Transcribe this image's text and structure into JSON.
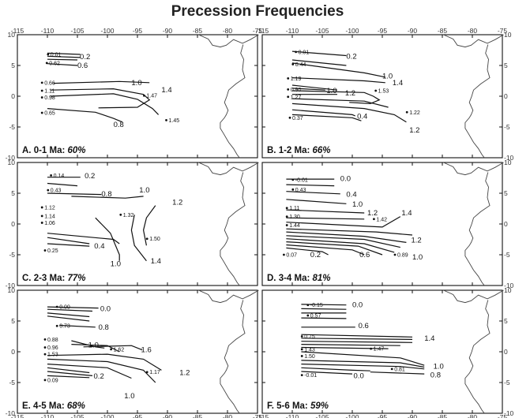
{
  "title": "Precession Frequencies",
  "x_ticks": [
    "-115",
    "-110",
    "-105",
    "-100",
    "-95",
    "-90",
    "-85",
    "-80",
    "-75"
  ],
  "y_ticks": [
    "10",
    "5",
    "0",
    "-5",
    "-10"
  ],
  "panels": [
    {
      "id": "A",
      "label": "A. 0-1 Ma:",
      "percent": "60%",
      "values": [
        {
          "v": "0.01",
          "x": -109.5,
          "y": 6.8
        },
        {
          "v": "0.62",
          "x": -109.7,
          "y": 5.4
        },
        {
          "v": "0.66",
          "x": -110.5,
          "y": 2.2
        },
        {
          "v": "1.11",
          "x": -110.5,
          "y": 0.9
        },
        {
          "v": "0.98",
          "x": -110.5,
          "y": -0.2
        },
        {
          "v": "0.65",
          "x": -110.5,
          "y": -2.7
        },
        {
          "v": "1.47",
          "x": -93.5,
          "y": 0.1
        },
        {
          "v": "1.45",
          "x": -89.8,
          "y": -3.9
        }
      ],
      "contours": [
        {
          "v": "0.2",
          "x": -104.6,
          "y": 6.4
        },
        {
          "v": "0.6",
          "x": -105.0,
          "y": 5.0
        },
        {
          "v": "1.0",
          "x": -96.0,
          "y": 2.2
        },
        {
          "v": "1.4",
          "x": -91.0,
          "y": 1.0
        },
        {
          "v": "0.8",
          "x": -99.0,
          "y": -4.6
        }
      ]
    },
    {
      "id": "B",
      "label": "B. 1-2 Ma:",
      "percent": "66%",
      "values": [
        {
          "v": "0.01",
          "x": -109.0,
          "y": 7.2
        },
        {
          "v": "0.44",
          "x": -109.5,
          "y": 5.2
        },
        {
          "v": "1.19",
          "x": -110.3,
          "y": 2.9
        },
        {
          "v": "0.90",
          "x": -110.3,
          "y": 1.1
        },
        {
          "v": "1.27",
          "x": -110.3,
          "y": -0.1
        },
        {
          "v": "0.37",
          "x": -110.0,
          "y": -3.5
        },
        {
          "v": "1.53",
          "x": -95.7,
          "y": 0.9
        },
        {
          "v": "1.22",
          "x": -90.5,
          "y": -2.6
        }
      ],
      "contours": [
        {
          "v": "0.2",
          "x": -101.0,
          "y": 6.5
        },
        {
          "v": "1.0",
          "x": -104.3,
          "y": 0.9
        },
        {
          "v": "1.2",
          "x": -101.2,
          "y": 0.5
        },
        {
          "v": "1.0",
          "x": -95.0,
          "y": 3.3
        },
        {
          "v": "1.4",
          "x": -93.3,
          "y": 2.2
        },
        {
          "v": "0.4",
          "x": -99.2,
          "y": -3.3
        },
        {
          "v": "1.2",
          "x": -90.5,
          "y": -5.5
        }
      ]
    },
    {
      "id": "C",
      "label": "C. 2-3 Ma:",
      "percent": "77%",
      "values": [
        {
          "v": "0.14",
          "x": -109.0,
          "y": 7.9
        },
        {
          "v": "0.43",
          "x": -109.5,
          "y": 5.5
        },
        {
          "v": "1.12",
          "x": -110.5,
          "y": 2.7
        },
        {
          "v": "1.14",
          "x": -110.5,
          "y": 1.3
        },
        {
          "v": "1.06",
          "x": -110.5,
          "y": 0.2
        },
        {
          "v": "1.32",
          "x": -97.4,
          "y": 1.5
        },
        {
          "v": "1.50",
          "x": -93.0,
          "y": -2.4
        },
        {
          "v": "0.25",
          "x": -110.0,
          "y": -4.3
        }
      ],
      "contours": [
        {
          "v": "0.2",
          "x": -103.8,
          "y": 7.8
        },
        {
          "v": "0.8",
          "x": -101.0,
          "y": 4.9
        },
        {
          "v": "1.0",
          "x": -94.7,
          "y": 5.5
        },
        {
          "v": "1.2",
          "x": -89.2,
          "y": 3.5
        },
        {
          "v": "0.4",
          "x": -102.2,
          "y": -3.6
        },
        {
          "v": "1.0",
          "x": -99.5,
          "y": -6.5
        },
        {
          "v": "1.4",
          "x": -92.8,
          "y": -6.0
        }
      ]
    },
    {
      "id": "D",
      "label": "D. 3-4 Ma:",
      "percent": "81%",
      "values": [
        {
          "v": "-0.01",
          "x": -109.5,
          "y": 7.2
        },
        {
          "v": "0.43",
          "x": -109.5,
          "y": 5.6
        },
        {
          "v": "1.11",
          "x": -110.5,
          "y": 2.6
        },
        {
          "v": "1.30",
          "x": -110.5,
          "y": 1.2
        },
        {
          "v": "1.44",
          "x": -110.5,
          "y": -0.2
        },
        {
          "v": "1.42",
          "x": -96.0,
          "y": 0.8
        },
        {
          "v": "0.07",
          "x": -111.0,
          "y": -5.0
        },
        {
          "v": "0.89",
          "x": -92.5,
          "y": -5.0
        }
      ],
      "contours": [
        {
          "v": "0.0",
          "x": -102.0,
          "y": 7.4
        },
        {
          "v": "0.4",
          "x": -101.0,
          "y": 4.8
        },
        {
          "v": "1.0",
          "x": -100.0,
          "y": 3.2
        },
        {
          "v": "1.2",
          "x": -97.5,
          "y": 1.8
        },
        {
          "v": "1.4",
          "x": -91.8,
          "y": 1.8
        },
        {
          "v": "1.2",
          "x": -90.2,
          "y": -2.6
        },
        {
          "v": "0.2",
          "x": -107.0,
          "y": -5.0
        },
        {
          "v": "0.6",
          "x": -98.8,
          "y": -5.0
        },
        {
          "v": "1.0",
          "x": -90.0,
          "y": -5.4
        }
      ]
    },
    {
      "id": "E",
      "label": "E. 4-5 Ma:",
      "percent": "68%",
      "values": [
        {
          "v": "0.00",
          "x": -108.0,
          "y": 7.3
        },
        {
          "v": "0.73",
          "x": -108.0,
          "y": 4.2
        },
        {
          "v": "0.88",
          "x": -110.0,
          "y": 2.0
        },
        {
          "v": "0.96",
          "x": -110.0,
          "y": 0.7
        },
        {
          "v": "1.53",
          "x": -110.0,
          "y": -0.4
        },
        {
          "v": "1.62",
          "x": -99.0,
          "y": 0.4
        },
        {
          "v": "1.17",
          "x": -93.0,
          "y": -3.3
        },
        {
          "v": "0.09",
          "x": -110.0,
          "y": -4.6
        }
      ],
      "contours": [
        {
          "v": "0.0",
          "x": -101.2,
          "y": 7.0
        },
        {
          "v": "0.8",
          "x": -101.5,
          "y": 4.0
        },
        {
          "v": "1.0",
          "x": -103.2,
          "y": 1.1
        },
        {
          "v": "1.6",
          "x": -94.4,
          "y": 0.3
        },
        {
          "v": "1.2",
          "x": -88.0,
          "y": -3.4
        },
        {
          "v": "0.2",
          "x": -102.3,
          "y": -4.0
        },
        {
          "v": "1.0",
          "x": -97.2,
          "y": -7.2
        }
      ]
    },
    {
      "id": "F",
      "label": "F. 5-6 Ma:",
      "percent": "59%",
      "values": [
        {
          "v": "-0.15",
          "x": -107.0,
          "y": 7.6
        },
        {
          "v": "0.57",
          "x": -107.0,
          "y": 5.9
        },
        {
          "v": "0.75",
          "x": -108.0,
          "y": 2.5
        },
        {
          "v": "1.43",
          "x": -108.0,
          "y": 0.4
        },
        {
          "v": "1.50",
          "x": -108.0,
          "y": -0.7
        },
        {
          "v": "1.47",
          "x": -96.5,
          "y": 0.5
        },
        {
          "v": "0.81",
          "x": -93.0,
          "y": -2.8
        },
        {
          "v": "-0.01",
          "x": -108.0,
          "y": -3.8
        }
      ],
      "contours": [
        {
          "v": "0.0",
          "x": -100.0,
          "y": 7.6
        },
        {
          "v": "0.6",
          "x": -99.0,
          "y": 4.2
        },
        {
          "v": "1.4",
          "x": -88.0,
          "y": 2.2
        },
        {
          "v": "1.0",
          "x": -86.5,
          "y": -2.4
        },
        {
          "v": "0.0",
          "x": -99.8,
          "y": -3.9
        },
        {
          "v": "0.8",
          "x": -87.0,
          "y": -3.8
        }
      ]
    }
  ]
}
